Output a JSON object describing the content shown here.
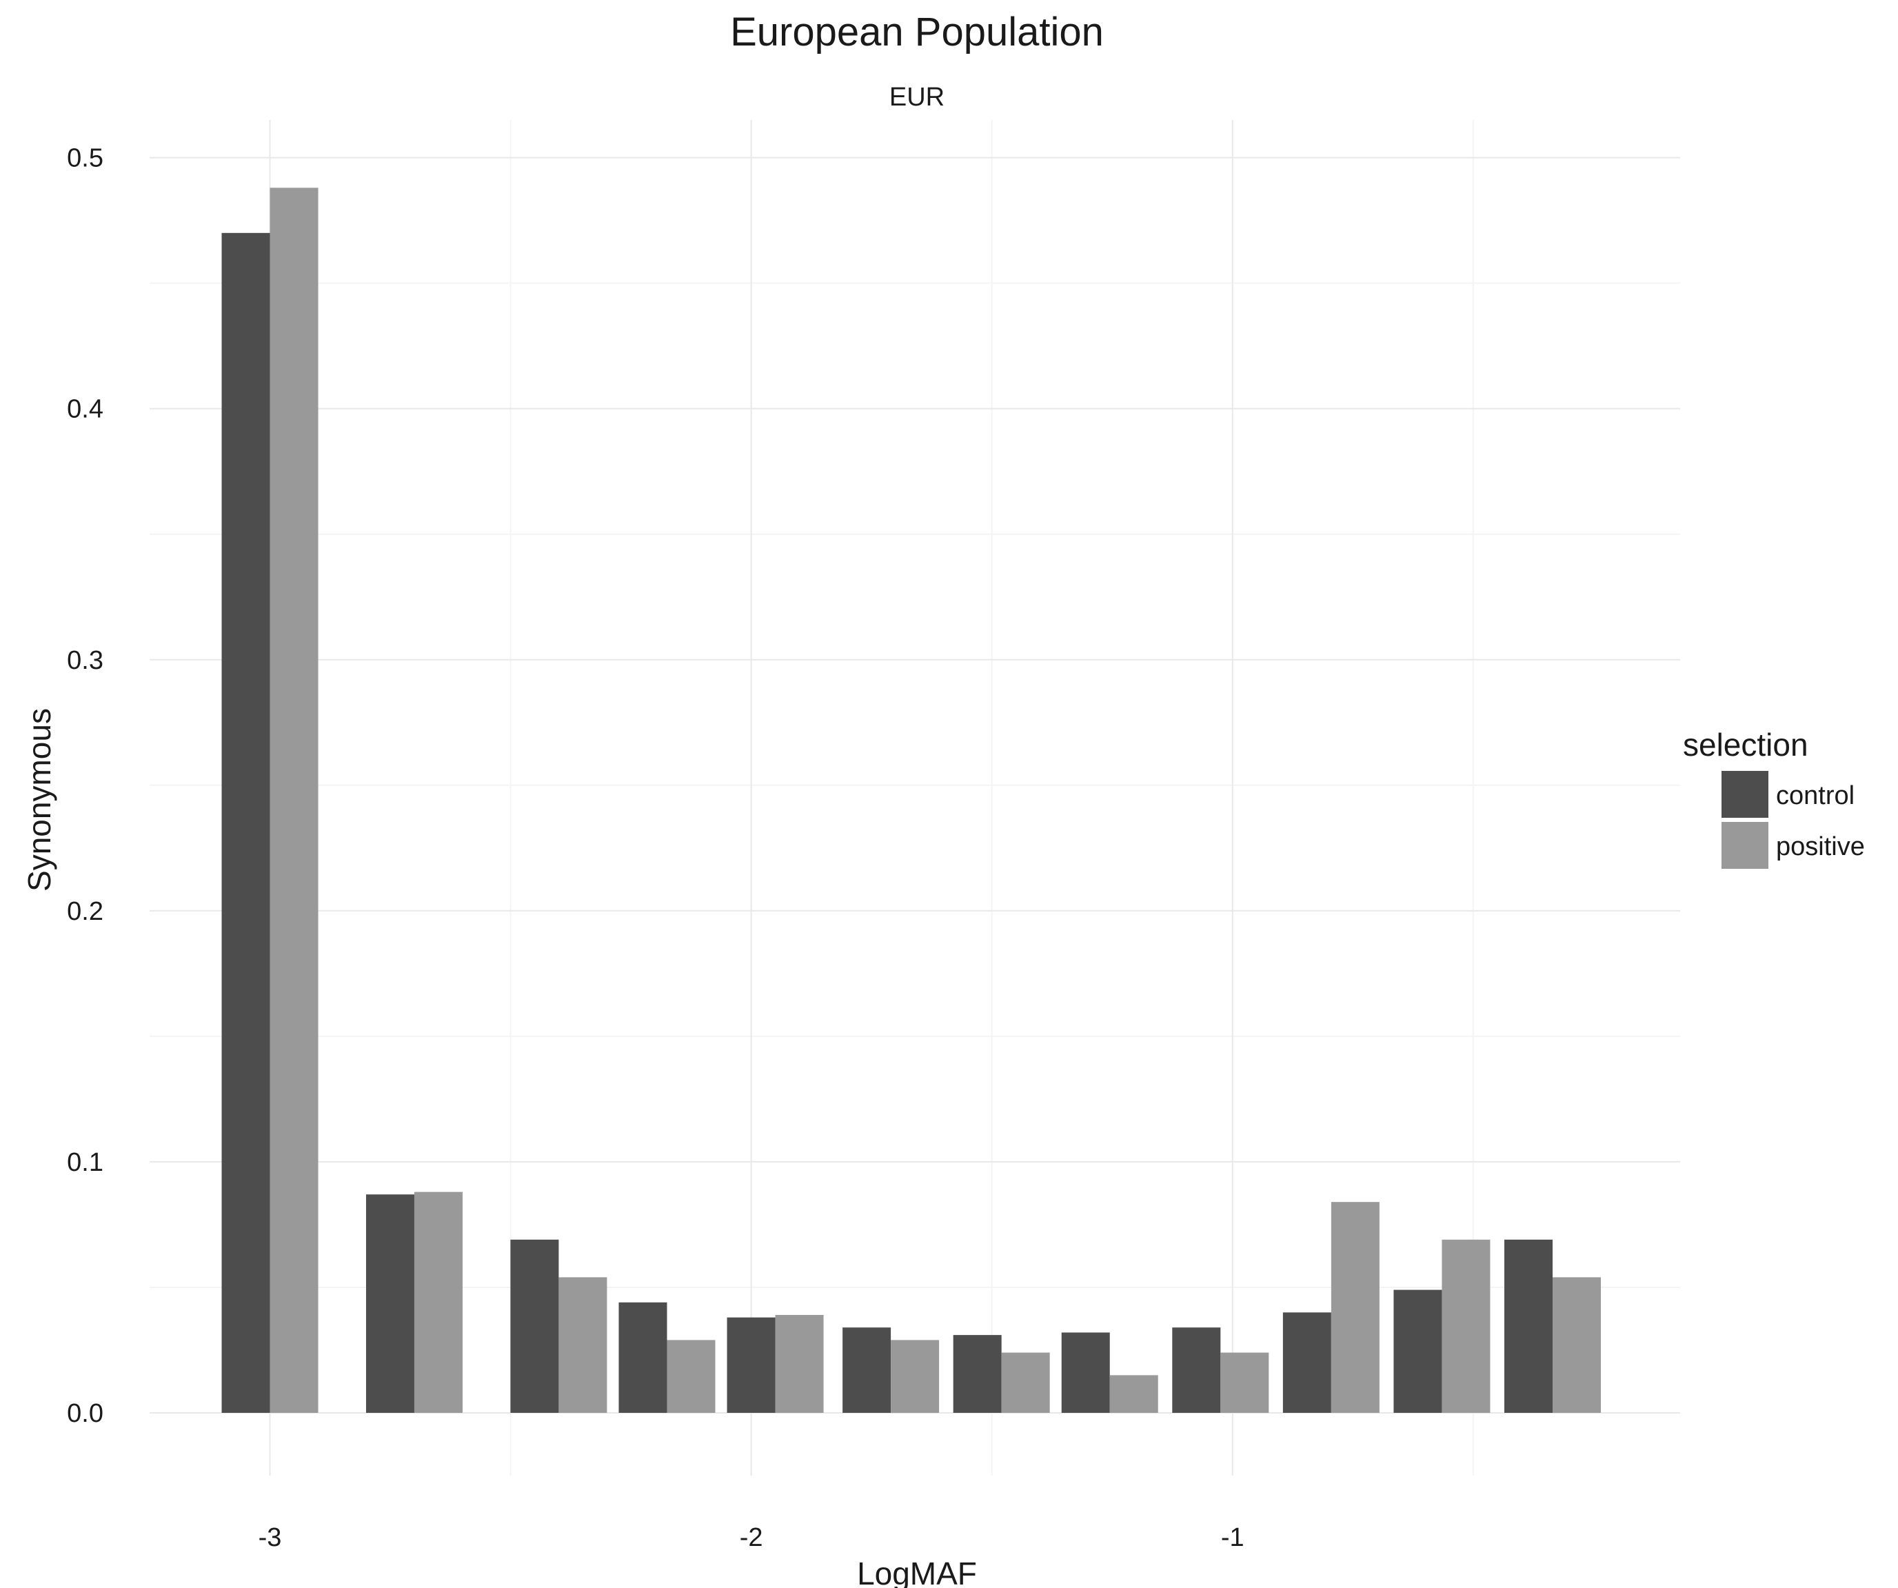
{
  "chart_data": {
    "type": "bar",
    "title": "European Population",
    "subtitle": "EUR",
    "xlabel": "LogMAF",
    "ylabel": "Synonymous",
    "xlim": [
      -3.25,
      -0.07
    ],
    "ylim": [
      -0.025,
      0.515
    ],
    "x_ticks": [
      -3,
      -2,
      -1
    ],
    "y_ticks": [
      0.0,
      0.1,
      0.2,
      0.3,
      0.4,
      0.5
    ],
    "y_tick_labels": [
      "0.0",
      "0.1",
      "0.2",
      "0.3",
      "0.4",
      "0.5"
    ],
    "x_tick_labels": [
      "-3",
      "-2",
      "-1"
    ],
    "grid": true,
    "legend": {
      "title": "selection",
      "position": "right"
    },
    "x": [
      -3.0,
      -2.7,
      -2.4,
      -2.175,
      -1.95,
      -1.71,
      -1.48,
      -1.255,
      -1.025,
      -0.795,
      -0.565,
      -0.335
    ],
    "series": [
      {
        "name": "control",
        "color": "#4d4d4d",
        "values": [
          0.47,
          0.087,
          0.069,
          0.044,
          0.038,
          0.034,
          0.031,
          0.032,
          0.034,
          0.04,
          0.049,
          0.069
        ]
      },
      {
        "name": "positive",
        "color": "#999999",
        "values": [
          0.488,
          0.088,
          0.054,
          0.029,
          0.039,
          0.029,
          0.024,
          0.015,
          0.024,
          0.084,
          0.069,
          0.054
        ]
      }
    ]
  }
}
